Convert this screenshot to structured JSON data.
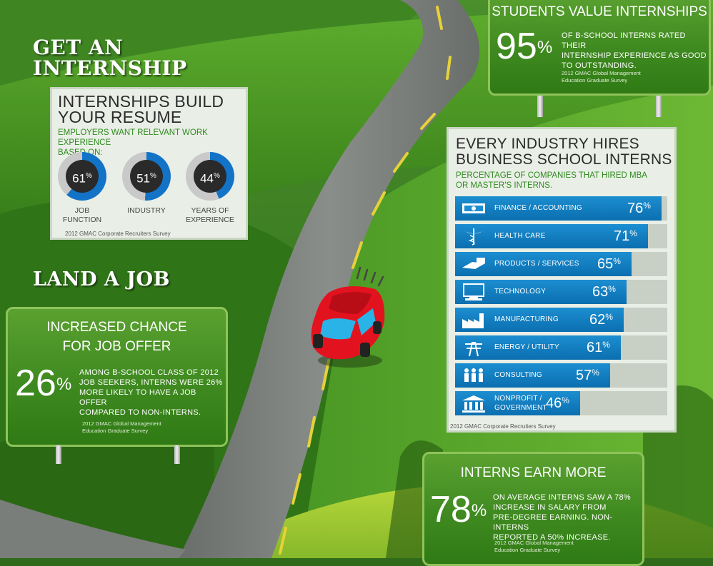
{
  "headings": {
    "get_internship_line1": "GET AN",
    "get_internship_line2": "INTERNSHIP",
    "land_job": "LAND A JOB"
  },
  "resume_panel": {
    "title_line1": "INTERNSHIPS BUILD",
    "title_line2": "YOUR RESUME",
    "subtitle_line1": "EMPLOYERS WANT RELEVANT WORK EXPERIENCE",
    "subtitle_line2": "BASED ON:",
    "donuts": [
      {
        "value": 61,
        "value_text": "61",
        "label_line1": "JOB",
        "label_line2": "FUNCTION"
      },
      {
        "value": 51,
        "value_text": "51",
        "label_line1": "INDUSTRY",
        "label_line2": ""
      },
      {
        "value": 44,
        "value_text": "44",
        "label_line1": "YEARS OF",
        "label_line2": "EXPERIENCE"
      }
    ],
    "percent_sign": "%",
    "source": "2012 GMAC Corporate Recruiters Survey"
  },
  "students_value": {
    "title": "STUDENTS VALUE INTERNSHIPS",
    "number": "95",
    "percent_sign": "%",
    "text_line1": "OF B-SCHOOL INTERNS RATED THEIR",
    "text_line2": "INTERNSHIP EXPERIENCE AS GOOD",
    "text_line3": "TO OUTSTANDING.",
    "source_line1": "2012 GMAC Global Management",
    "source_line2": "Education Graduate Survey"
  },
  "job_offer": {
    "title_line1": "INCREASED CHANCE",
    "title_line2": "FOR JOB OFFER",
    "number": "26",
    "percent_sign": "%",
    "text_line1": "AMONG B-SCHOOL CLASS OF 2012",
    "text_line2": "JOB SEEKERS, INTERNS WERE 26%",
    "text_line3": "MORE LIKELY TO HAVE A JOB OFFER",
    "text_line4": "COMPARED TO NON-INTERNS.",
    "source_line1": "2012 GMAC Global Management",
    "source_line2": "Education Graduate Survey"
  },
  "industry_panel": {
    "title_line1": "EVERY INDUSTRY HIRES",
    "title_line2": "BUSINESS SCHOOL INTERNS",
    "subtitle_line1": "PERCENTAGE OF COMPANIES THAT HIRED MBA",
    "subtitle_line2": "OR MASTER'S INTERNS.",
    "percent_sign": "%",
    "source": "2012 GMAC Corporate Recruiters Survey"
  },
  "chart_data": {
    "type": "bar",
    "categories": [
      "FINANCE / ACCOUNTING",
      "HEALTH CARE",
      "PRODUCTS / SERVICES",
      "TECHNOLOGY",
      "MANUFACTURING",
      "ENERGY / UTILITY",
      "CONSULTING",
      "NONPROFIT / GOVERNMENT"
    ],
    "values": [
      76,
      71,
      65,
      63,
      62,
      61,
      57,
      46
    ],
    "value_texts": [
      "76",
      "71",
      "65",
      "63",
      "62",
      "61",
      "57",
      "46"
    ],
    "icons": [
      "money-icon",
      "caduceus-icon",
      "boxes-icon",
      "computer-icon",
      "factory-icon",
      "power-tower-icon",
      "people-icon",
      "government-building-icon"
    ],
    "xlim": [
      0,
      100
    ]
  },
  "earn_more": {
    "title": "INTERNS EARN MORE",
    "number": "78",
    "percent_sign": "%",
    "text_line1": "ON AVERAGE INTERNS SAW A 78%",
    "text_line2": "INCREASE IN SALARY FROM",
    "text_line3": "PRE-DEGREE EARNING. NON-INTERNS",
    "text_line4": "REPORTED A 50% INCREASE.",
    "source_line1": "2012 GMAC Global Management",
    "source_line2": "Education Graduate Survey"
  },
  "colors": {
    "bar_blue": "#1180c4",
    "donut_blue": "#1273c7",
    "donut_gray": "#c9c9c9",
    "sign_green": "#3f8a20",
    "subtitle_green": "#2f8a1f"
  }
}
